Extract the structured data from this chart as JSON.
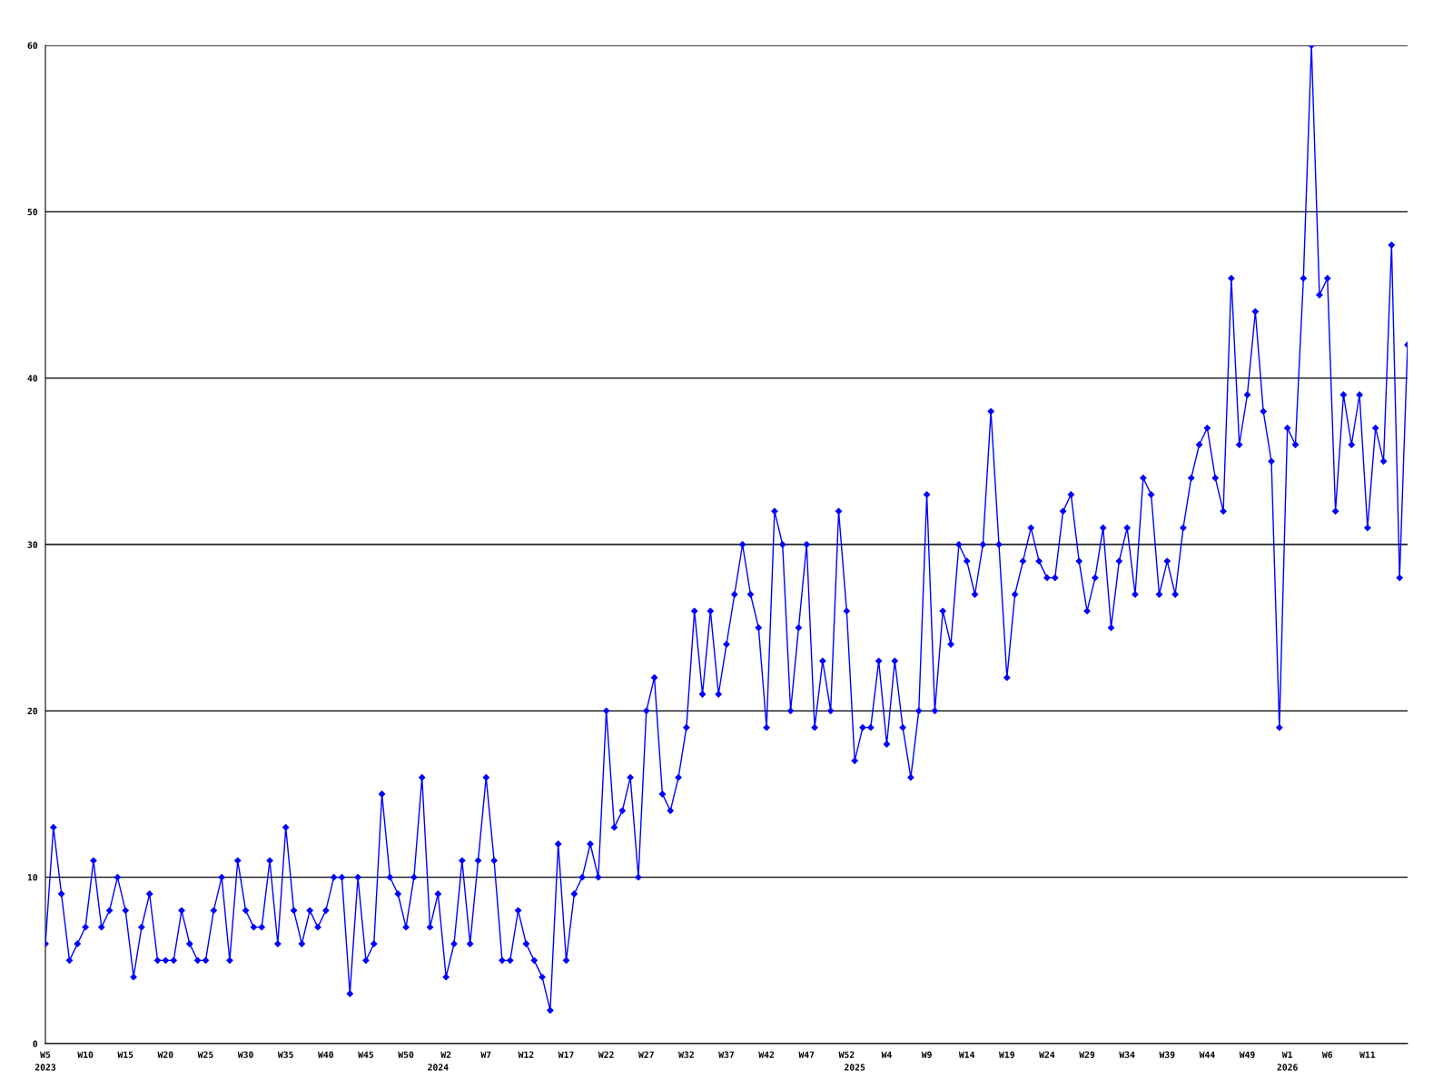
{
  "chart_data": {
    "type": "line",
    "categories": [
      "W5\n2023",
      null,
      null,
      null,
      null,
      "W10",
      null,
      null,
      null,
      null,
      "W15",
      null,
      null,
      null,
      null,
      "W20",
      null,
      null,
      null,
      null,
      "W25",
      null,
      null,
      null,
      null,
      "W30",
      null,
      null,
      null,
      null,
      "W35",
      null,
      null,
      null,
      null,
      "W40",
      null,
      null,
      null,
      null,
      "W45",
      null,
      null,
      null,
      null,
      "W50",
      null,
      null,
      null,
      "\n2024",
      "W2",
      null,
      null,
      null,
      null,
      "W7",
      null,
      null,
      null,
      null,
      "W12",
      null,
      null,
      null,
      null,
      "W17",
      null,
      null,
      null,
      null,
      "W22",
      null,
      null,
      null,
      null,
      "W27",
      null,
      null,
      null,
      null,
      "W32",
      null,
      null,
      null,
      null,
      "W37",
      null,
      null,
      null,
      null,
      "W42",
      null,
      null,
      null,
      null,
      "W47",
      null,
      null,
      null,
      null,
      "W52",
      "\n2025",
      null,
      null,
      null,
      "W4",
      null,
      null,
      null,
      null,
      "W9",
      null,
      null,
      null,
      null,
      "W14",
      null,
      null,
      null,
      null,
      "W19",
      null,
      null,
      null,
      null,
      "W24",
      null,
      null,
      null,
      null,
      "W29",
      null,
      null,
      null,
      null,
      "W34",
      null,
      null,
      null,
      null,
      "W39",
      null,
      null,
      null,
      null,
      "W44",
      null,
      null,
      null,
      null,
      "W49",
      null,
      null,
      null,
      null,
      "W1\n2026",
      null,
      null,
      null,
      null,
      "W6",
      null,
      null,
      null,
      null,
      "W11",
      null,
      null,
      null,
      null,
      null
    ],
    "series": [
      {
        "color": "#0000ff",
        "values": [
          6,
          13,
          9,
          5,
          6,
          7,
          11,
          7,
          8,
          10,
          8,
          4,
          7,
          9,
          5,
          5,
          5,
          8,
          6,
          5,
          5,
          8,
          10,
          5,
          11,
          8,
          7,
          7,
          11,
          6,
          13,
          8,
          6,
          8,
          7,
          8,
          10,
          10,
          3,
          10,
          5,
          6,
          15,
          10,
          9,
          7,
          10,
          16,
          7,
          9,
          4,
          6,
          11,
          6,
          11,
          16,
          11,
          5,
          5,
          8,
          6,
          5,
          4,
          2,
          12,
          5,
          9,
          10,
          12,
          10,
          20,
          13,
          14,
          16,
          10,
          20,
          22,
          15,
          14,
          16,
          19,
          26,
          21,
          26,
          21,
          24,
          27,
          30,
          27,
          25,
          19,
          32,
          30,
          20,
          25,
          30,
          19,
          23,
          20,
          32,
          26,
          17,
          19,
          19,
          23,
          18,
          23,
          19,
          16,
          20,
          33,
          20,
          26,
          24,
          30,
          29,
          27,
          30,
          38,
          30,
          22,
          27,
          29,
          31,
          29,
          28,
          28,
          32,
          33,
          29,
          26,
          28,
          31,
          25,
          29,
          31,
          27,
          34,
          33,
          27,
          29,
          27,
          31,
          34,
          36,
          37,
          34,
          32,
          46,
          36,
          39,
          44,
          38,
          35,
          19,
          37,
          36,
          46,
          60,
          45,
          46,
          32,
          39,
          36,
          39,
          31,
          37,
          35,
          48,
          28,
          42
        ]
      }
    ],
    "ylim": [
      0,
      60
    ],
    "yticks": [
      0,
      10,
      20,
      30,
      40,
      50,
      60
    ],
    "grid": "y",
    "marker": "diamond",
    "line_style": "solid"
  }
}
